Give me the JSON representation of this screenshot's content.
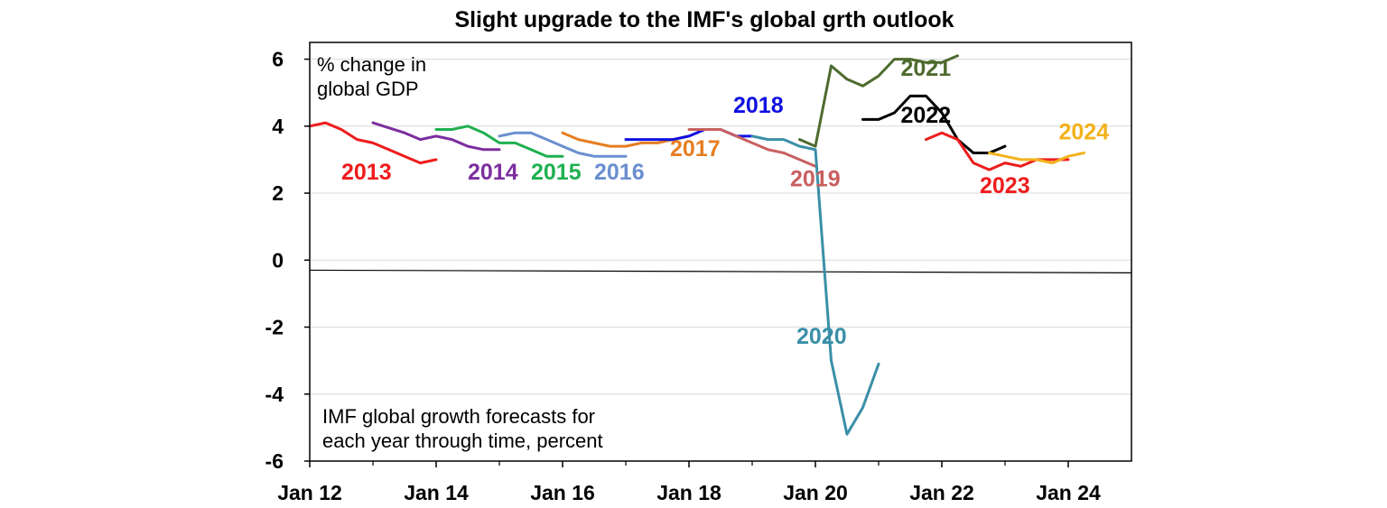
{
  "chart_data": {
    "type": "line",
    "title": "Slight upgrade to the IMF's global grth outlook",
    "ylabel": "% change in global GDP",
    "ylabel_lines": [
      "% change in",
      "global GDP"
    ],
    "annotation_lines": [
      "IMF global growth forecasts for",
      "each year through time, percent"
    ],
    "x_range": [
      2012.0,
      2025.0
    ],
    "ylim": [
      -6,
      6.5
    ],
    "y_ticks": [
      6,
      4,
      2,
      0,
      -2,
      -4,
      -6
    ],
    "y_tick_labels": [
      "6",
      "4",
      "2",
      "0",
      "-2",
      "-4",
      "-6"
    ],
    "x_ticks": [
      2012,
      2014,
      2016,
      2018,
      2020,
      2022,
      2024
    ],
    "x_tick_labels": [
      "Jan 12",
      "Jan 14",
      "Jan 16",
      "Jan 18",
      "Jan 20",
      "Jan 22",
      "Jan 24"
    ],
    "grid": true,
    "zero_line": {
      "start": -0.3,
      "end": -0.38
    },
    "series": [
      {
        "name": "2013",
        "color": "#ee1c1c",
        "label_at": [
          2012.5,
          2.4
        ],
        "x": [
          2012.0,
          2012.25,
          2012.5,
          2012.75,
          2013.0,
          2013.25,
          2013.5,
          2013.75,
          2014.0
        ],
        "values": [
          4.0,
          4.1,
          3.9,
          3.6,
          3.5,
          3.3,
          3.1,
          2.9,
          3.0
        ]
      },
      {
        "name": "2014",
        "color": "#7b2f9e",
        "label_at": [
          2014.5,
          2.4
        ],
        "x": [
          2013.0,
          2013.25,
          2013.5,
          2013.75,
          2014.0,
          2014.25,
          2014.5,
          2014.75,
          2015.0
        ],
        "values": [
          4.1,
          3.95,
          3.8,
          3.6,
          3.7,
          3.6,
          3.4,
          3.3,
          3.3
        ]
      },
      {
        "name": "2015",
        "color": "#20b050",
        "label_at": [
          2015.5,
          2.4
        ],
        "x": [
          2014.0,
          2014.25,
          2014.5,
          2014.75,
          2015.0,
          2015.25,
          2015.5,
          2015.75,
          2016.0
        ],
        "values": [
          3.9,
          3.9,
          4.0,
          3.8,
          3.5,
          3.5,
          3.3,
          3.1,
          3.1
        ]
      },
      {
        "name": "2016",
        "color": "#6a8fcf",
        "label_at": [
          2016.5,
          2.4
        ],
        "x": [
          2015.0,
          2015.25,
          2015.5,
          2015.75,
          2016.0,
          2016.25,
          2016.5,
          2016.75,
          2017.0
        ],
        "values": [
          3.7,
          3.8,
          3.8,
          3.6,
          3.4,
          3.2,
          3.1,
          3.1,
          3.1
        ]
      },
      {
        "name": "2017",
        "color": "#e67e22",
        "label_at": [
          2017.7,
          3.1
        ],
        "x": [
          2016.0,
          2016.25,
          2016.5,
          2016.75,
          2017.0,
          2017.25,
          2017.5,
          2017.75,
          2018.0
        ],
        "values": [
          3.8,
          3.6,
          3.5,
          3.4,
          3.4,
          3.5,
          3.5,
          3.6,
          3.7
        ]
      },
      {
        "name": "2018",
        "color": "#1010e0",
        "label_at": [
          2018.7,
          4.4
        ],
        "x": [
          2017.0,
          2017.25,
          2017.5,
          2017.75,
          2018.0,
          2018.25,
          2018.5,
          2018.75,
          2019.0
        ],
        "values": [
          3.6,
          3.6,
          3.6,
          3.6,
          3.7,
          3.9,
          3.9,
          3.7,
          3.7
        ]
      },
      {
        "name": "2019",
        "color": "#c86060",
        "label_at": [
          2019.6,
          2.2
        ],
        "x": [
          2018.0,
          2018.25,
          2018.5,
          2018.75,
          2019.0,
          2019.25,
          2019.5,
          2019.75,
          2020.0
        ],
        "values": [
          3.9,
          3.9,
          3.9,
          3.7,
          3.5,
          3.3,
          3.2,
          3.0,
          2.8
        ]
      },
      {
        "name": "2020",
        "color": "#3a8fa8",
        "label_at": [
          2019.7,
          -2.5
        ],
        "x": [
          2019.0,
          2019.25,
          2019.5,
          2019.75,
          2020.0,
          2020.25,
          2020.5,
          2020.75,
          2021.0
        ],
        "values": [
          3.7,
          3.6,
          3.6,
          3.4,
          3.3,
          -3.0,
          -5.2,
          -4.4,
          -3.1
        ]
      },
      {
        "name": "2021",
        "color": "#4e6b2e",
        "label_at": [
          2021.35,
          5.5
        ],
        "x": [
          2019.75,
          2020.0,
          2020.25,
          2020.5,
          2020.75,
          2021.0,
          2021.25,
          2021.5,
          2021.75,
          2022.0,
          2022.25
        ],
        "values": [
          3.6,
          3.4,
          5.8,
          5.4,
          5.2,
          5.5,
          6.0,
          6.0,
          5.9,
          5.9,
          6.1
        ]
      },
      {
        "name": "2022",
        "color": "#000000",
        "label_at": [
          2021.35,
          4.1
        ],
        "x": [
          2020.75,
          2021.0,
          2021.25,
          2021.5,
          2021.75,
          2022.0,
          2022.25,
          2022.5,
          2022.75,
          2023.0
        ],
        "values": [
          4.2,
          4.2,
          4.4,
          4.9,
          4.9,
          4.4,
          3.6,
          3.2,
          3.2,
          3.4
        ]
      },
      {
        "name": "2023",
        "color": "#ee1c1c",
        "label_at": [
          2022.6,
          2.0
        ],
        "x": [
          2021.75,
          2022.0,
          2022.25,
          2022.5,
          2022.75,
          2023.0,
          2023.25,
          2023.5,
          2023.75,
          2024.0
        ],
        "values": [
          3.6,
          3.8,
          3.6,
          2.9,
          2.7,
          2.9,
          2.8,
          3.0,
          3.0,
          3.0
        ]
      },
      {
        "name": "2024",
        "color": "#f3b21b",
        "label_at": [
          2023.85,
          3.6
        ],
        "x": [
          2022.75,
          2023.0,
          2023.25,
          2023.5,
          2023.75,
          2024.0,
          2024.25
        ],
        "values": [
          3.2,
          3.1,
          3.0,
          3.0,
          2.9,
          3.1,
          3.2
        ]
      }
    ]
  }
}
